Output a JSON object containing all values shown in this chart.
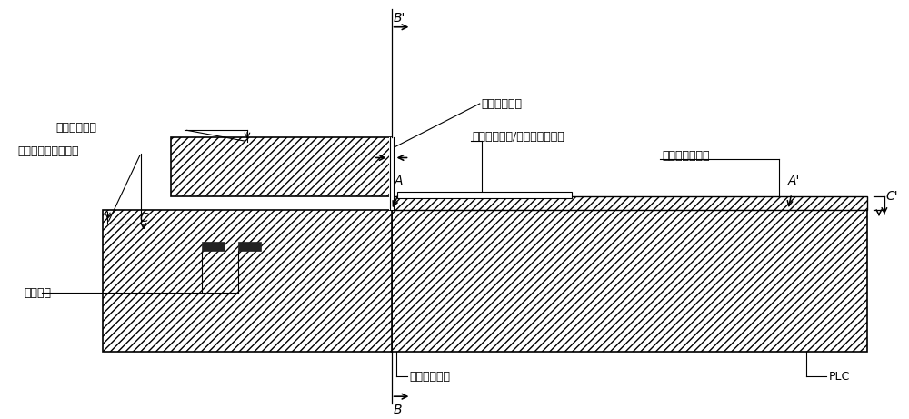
{
  "bg_color": "#ffffff",
  "line_color": "#000000",
  "labels": {
    "single_mode_device": "单模有源器件",
    "single_mode_fixture": "单模有源器件固定台",
    "coupling_gap": "耦合间隔空隙",
    "si3n4_waveguide": "氮化硅副波导/二氧化硅副波导",
    "sio2_waveguide": "二氧化硅主波导",
    "binding_solder": "绑定焊点",
    "laser_output": "激光器出光口",
    "plc": "PLC",
    "B_top": "B'",
    "B_bottom": "B",
    "A_left": "A",
    "A_right": "A'",
    "C_left": "C",
    "C_right": "C'"
  },
  "figsize": [
    10.0,
    4.61
  ],
  "dpi": 100,
  "font_size_label": 10,
  "font_size_marker": 10,
  "font_size_small": 9
}
